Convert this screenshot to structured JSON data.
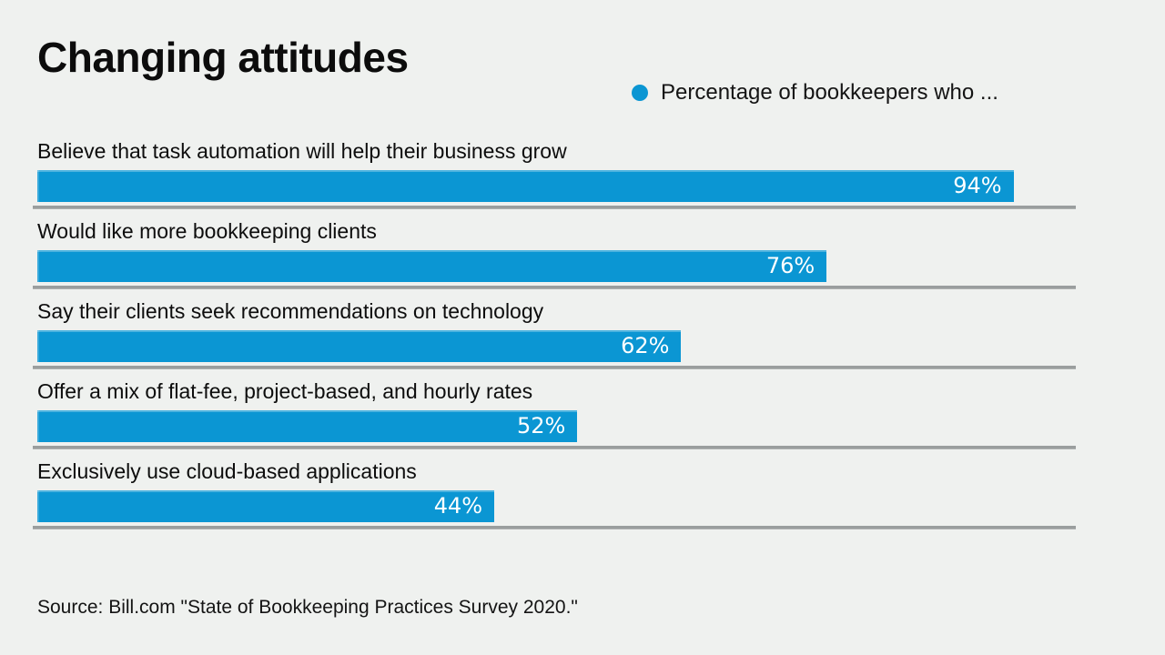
{
  "title": "Changing attitudes",
  "legend": {
    "label": "Percentage of bookkeepers who ..."
  },
  "source": "Source: Bill.com \"State of Bookkeeping Practices Survey 2020.\"",
  "colors": {
    "background": "#eff1ef",
    "bar": "#0b96d3",
    "rule": "#9a9e9e",
    "text": "#111213",
    "value_text": "#ffffff"
  },
  "chart_data": {
    "type": "bar",
    "orientation": "horizontal",
    "title": "Changing attitudes",
    "legend_label": "Percentage of bookkeepers who ...",
    "xlim": [
      0,
      100
    ],
    "grid": false,
    "categories": [
      "Believe that task automation will help their business grow",
      "Would like more bookkeeping clients",
      "Say their clients seek recommendations on technology",
      "Offer a mix of flat-fee, project-based, and hourly rates",
      "Exclusively use cloud-based applications"
    ],
    "values": [
      94,
      76,
      62,
      52,
      44
    ],
    "value_labels": [
      "94%",
      "76%",
      "62%",
      "52%",
      "44%"
    ]
  }
}
